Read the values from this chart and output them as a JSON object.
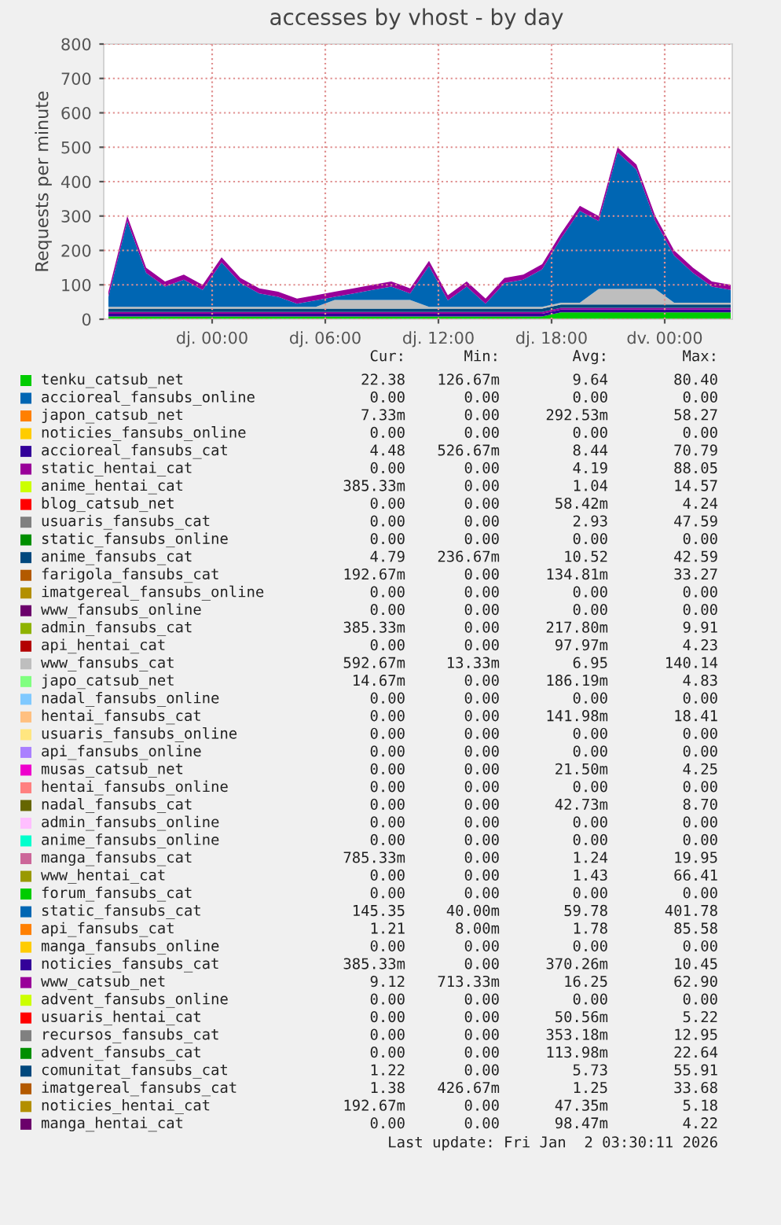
{
  "chart_data": [
    {
      "type": "area",
      "stacked": true,
      "title": "accesses by vhost - by day",
      "ylabel": "Requests per minute",
      "x": [
        "2025-12-31T18:30",
        "2025-12-31T19:30",
        "2025-12-31T20:30",
        "2025-12-31T21:30",
        "2025-12-31T22:30",
        "2025-12-31T23:30",
        "2026-01-01T00:30",
        "2026-01-01T01:30",
        "2026-01-01T02:30",
        "2026-01-01T03:30",
        "2026-01-01T04:30",
        "2026-01-01T05:30",
        "2026-01-01T06:30",
        "2026-01-01T07:30",
        "2026-01-01T08:30",
        "2026-01-01T09:30",
        "2026-01-01T10:30",
        "2026-01-01T11:30",
        "2026-01-01T12:30",
        "2026-01-01T13:30",
        "2026-01-01T14:30",
        "2026-01-01T15:30",
        "2026-01-01T16:30",
        "2026-01-01T17:30",
        "2026-01-01T18:30",
        "2026-01-01T19:30",
        "2026-01-01T20:30",
        "2026-01-01T21:30",
        "2026-01-01T22:30",
        "2026-01-01T23:30",
        "2026-01-02T00:30",
        "2026-01-02T01:30",
        "2026-01-02T02:30",
        "2026-01-02T03:30"
      ],
      "xlim": [
        "2025-12-31T18:15",
        "2026-01-02T03:35"
      ],
      "xticks": [
        {
          "value": "2026-01-01T00:00",
          "label": "dj. 00:00"
        },
        {
          "value": "2026-01-01T06:00",
          "label": "dj. 06:00"
        },
        {
          "value": "2026-01-01T12:00",
          "label": "dj. 12:00"
        },
        {
          "value": "2026-01-01T18:00",
          "label": "dj. 18:00"
        },
        {
          "value": "2026-01-02T00:00",
          "label": "dv. 00:00"
        }
      ],
      "ylim": [
        0,
        800
      ],
      "yticks": [
        0,
        100,
        200,
        300,
        400,
        500,
        600,
        700,
        800
      ],
      "grid": true,
      "legend": "bottom",
      "series": [
        {
          "name": "tenku_catsub_net",
          "color": "#00cc00",
          "values": [
            8,
            8,
            8,
            8,
            8,
            8,
            8,
            8,
            8,
            8,
            8,
            8,
            8,
            8,
            8,
            8,
            8,
            8,
            8,
            8,
            8,
            8,
            8,
            8,
            20,
            20,
            20,
            20,
            20,
            20,
            20,
            20,
            20,
            20
          ]
        },
        {
          "name": "accioreal_fansubs_online",
          "color": "#0066b3",
          "values": [
            null,
            null,
            null,
            null,
            null,
            null,
            null,
            null,
            null,
            null,
            null,
            null,
            null,
            null,
            null,
            null,
            null,
            null,
            null,
            null,
            null,
            null,
            null,
            null,
            null,
            null,
            null,
            null,
            null,
            null,
            null,
            null,
            null,
            null
          ]
        },
        {
          "name": "japon_catsub_net",
          "color": "#ff8000",
          "values": [
            null,
            null,
            null,
            null,
            null,
            null,
            null,
            null,
            null,
            null,
            null,
            null,
            null,
            null,
            null,
            null,
            null,
            null,
            null,
            null,
            null,
            null,
            null,
            null,
            null,
            null,
            null,
            null,
            null,
            null,
            null,
            null,
            null,
            null
          ]
        },
        {
          "name": "noticies_fansubs_online",
          "color": "#ffcc00",
          "values": [
            null,
            null,
            null,
            null,
            null,
            null,
            null,
            null,
            null,
            null,
            null,
            null,
            null,
            null,
            null,
            null,
            null,
            null,
            null,
            null,
            null,
            null,
            null,
            null,
            null,
            null,
            null,
            null,
            null,
            null,
            null,
            null,
            null,
            null
          ]
        },
        {
          "name": "accioreal_fansubs_cat",
          "color": "#330099",
          "values": [
            8,
            8,
            8,
            8,
            8,
            8,
            8,
            8,
            8,
            8,
            8,
            8,
            8,
            8,
            8,
            8,
            8,
            8,
            8,
            8,
            8,
            8,
            8,
            8,
            8,
            8,
            8,
            8,
            8,
            8,
            8,
            8,
            8,
            8
          ]
        },
        {
          "name": "static_hentai_cat",
          "color": "#990099",
          "values": [
            5,
            5,
            5,
            5,
            5,
            5,
            5,
            5,
            5,
            5,
            5,
            5,
            5,
            5,
            5,
            5,
            5,
            5,
            5,
            5,
            5,
            5,
            5,
            5,
            5,
            5,
            5,
            5,
            5,
            5,
            5,
            5,
            5,
            5
          ]
        },
        {
          "name": "anime_hentai_cat",
          "color": "#ccff00",
          "values": [
            null,
            null,
            null,
            null,
            null,
            null,
            null,
            null,
            null,
            null,
            null,
            null,
            null,
            null,
            null,
            null,
            null,
            null,
            null,
            null,
            null,
            null,
            null,
            null,
            null,
            null,
            null,
            null,
            null,
            null,
            null,
            null,
            null,
            null
          ]
        },
        {
          "name": "blog_catsub_net",
          "color": "#ff0000",
          "values": [
            null,
            null,
            null,
            null,
            null,
            null,
            null,
            null,
            null,
            null,
            null,
            null,
            null,
            null,
            null,
            null,
            null,
            null,
            null,
            null,
            null,
            null,
            null,
            null,
            null,
            null,
            null,
            null,
            null,
            null,
            null,
            null,
            null,
            null
          ]
        },
        {
          "name": "usuaris_fansubs_cat",
          "color": "#808080",
          "values": [
            null,
            null,
            null,
            null,
            null,
            null,
            null,
            null,
            null,
            null,
            null,
            null,
            null,
            null,
            null,
            null,
            null,
            null,
            null,
            null,
            null,
            null,
            null,
            null,
            null,
            null,
            null,
            null,
            null,
            null,
            null,
            null,
            null,
            null
          ]
        },
        {
          "name": "static_fansubs_online",
          "color": "#008f00",
          "values": [
            null,
            null,
            null,
            null,
            null,
            null,
            null,
            null,
            null,
            null,
            null,
            null,
            null,
            null,
            null,
            null,
            null,
            null,
            null,
            null,
            null,
            null,
            null,
            null,
            null,
            null,
            null,
            null,
            null,
            null,
            null,
            null,
            null,
            null
          ]
        },
        {
          "name": "anime_fansubs_cat",
          "color": "#00487d",
          "values": [
            10,
            10,
            10,
            10,
            10,
            10,
            10,
            10,
            10,
            10,
            10,
            10,
            10,
            10,
            10,
            10,
            10,
            10,
            10,
            10,
            10,
            10,
            10,
            10,
            10,
            10,
            10,
            10,
            10,
            10,
            10,
            10,
            10,
            10
          ]
        },
        {
          "name": "farigola_fansubs_cat",
          "color": "#b35a00",
          "values": [
            null,
            null,
            null,
            null,
            null,
            null,
            null,
            null,
            null,
            null,
            null,
            null,
            null,
            null,
            null,
            null,
            null,
            null,
            null,
            null,
            null,
            null,
            null,
            null,
            null,
            null,
            null,
            null,
            null,
            null,
            null,
            null,
            null,
            null
          ]
        },
        {
          "name": "imatgereal_fansubs_online",
          "color": "#b38f00",
          "values": [
            null,
            null,
            null,
            null,
            null,
            null,
            null,
            null,
            null,
            null,
            null,
            null,
            null,
            null,
            null,
            null,
            null,
            null,
            null,
            null,
            null,
            null,
            null,
            null,
            null,
            null,
            null,
            null,
            null,
            null,
            null,
            null,
            null,
            null
          ]
        },
        {
          "name": "www_fansubs_online",
          "color": "#6b006b",
          "values": [
            null,
            null,
            null,
            null,
            null,
            null,
            null,
            null,
            null,
            null,
            null,
            null,
            null,
            null,
            null,
            null,
            null,
            null,
            null,
            null,
            null,
            null,
            null,
            null,
            null,
            null,
            null,
            null,
            null,
            null,
            null,
            null,
            null,
            null
          ]
        },
        {
          "name": "admin_fansubs_cat",
          "color": "#8fb300",
          "values": [
            null,
            null,
            null,
            null,
            null,
            null,
            null,
            null,
            null,
            null,
            null,
            null,
            null,
            null,
            null,
            null,
            null,
            null,
            null,
            null,
            null,
            null,
            null,
            null,
            null,
            null,
            null,
            null,
            null,
            null,
            null,
            null,
            null,
            null
          ]
        },
        {
          "name": "api_hentai_cat",
          "color": "#b30000",
          "values": [
            null,
            null,
            null,
            null,
            null,
            null,
            null,
            null,
            null,
            null,
            null,
            null,
            null,
            null,
            null,
            null,
            null,
            null,
            null,
            null,
            null,
            null,
            null,
            null,
            null,
            null,
            null,
            null,
            null,
            null,
            null,
            null,
            null,
            null
          ]
        },
        {
          "name": "www_fansubs_cat",
          "color": "#bebebe",
          "values": [
            5,
            5,
            5,
            5,
            5,
            5,
            5,
            5,
            5,
            5,
            5,
            5,
            25,
            25,
            25,
            25,
            25,
            5,
            5,
            5,
            5,
            5,
            5,
            5,
            5,
            5,
            45,
            45,
            45,
            45,
            5,
            5,
            5,
            5
          ]
        },
        {
          "name": "japo_catsub_net",
          "color": "#80ff80",
          "values": [
            null,
            null,
            null,
            null,
            null,
            null,
            null,
            null,
            null,
            null,
            null,
            null,
            null,
            null,
            null,
            null,
            null,
            null,
            null,
            null,
            null,
            null,
            null,
            null,
            null,
            null,
            null,
            null,
            null,
            null,
            null,
            null,
            null,
            null
          ]
        },
        {
          "name": "nadal_fansubs_online",
          "color": "#80c9ff",
          "values": [
            null,
            null,
            null,
            null,
            null,
            null,
            null,
            null,
            null,
            null,
            null,
            null,
            null,
            null,
            null,
            null,
            null,
            null,
            null,
            null,
            null,
            null,
            null,
            null,
            null,
            null,
            null,
            null,
            null,
            null,
            null,
            null,
            null,
            null
          ]
        },
        {
          "name": "hentai_fansubs_cat",
          "color": "#ffc080",
          "values": [
            null,
            null,
            null,
            null,
            null,
            null,
            null,
            null,
            null,
            null,
            null,
            null,
            null,
            null,
            null,
            null,
            null,
            null,
            null,
            null,
            null,
            null,
            null,
            null,
            null,
            null,
            null,
            null,
            null,
            null,
            null,
            null,
            null,
            null
          ]
        },
        {
          "name": "usuaris_fansubs_online",
          "color": "#ffe680",
          "values": [
            null,
            null,
            null,
            null,
            null,
            null,
            null,
            null,
            null,
            null,
            null,
            null,
            null,
            null,
            null,
            null,
            null,
            null,
            null,
            null,
            null,
            null,
            null,
            null,
            null,
            null,
            null,
            null,
            null,
            null,
            null,
            null,
            null,
            null
          ]
        },
        {
          "name": "api_fansubs_online",
          "color": "#aa80ff",
          "values": [
            null,
            null,
            null,
            null,
            null,
            null,
            null,
            null,
            null,
            null,
            null,
            null,
            null,
            null,
            null,
            null,
            null,
            null,
            null,
            null,
            null,
            null,
            null,
            null,
            null,
            null,
            null,
            null,
            null,
            null,
            null,
            null,
            null,
            null
          ]
        },
        {
          "name": "musas_catsub_net",
          "color": "#ee00cc",
          "values": [
            null,
            null,
            null,
            null,
            null,
            null,
            null,
            null,
            null,
            null,
            null,
            null,
            null,
            null,
            null,
            null,
            null,
            null,
            null,
            null,
            null,
            null,
            null,
            null,
            null,
            null,
            null,
            null,
            null,
            null,
            null,
            null,
            null,
            null
          ]
        },
        {
          "name": "hentai_fansubs_online",
          "color": "#ff8080",
          "values": [
            null,
            null,
            null,
            null,
            null,
            null,
            null,
            null,
            null,
            null,
            null,
            null,
            null,
            null,
            null,
            null,
            null,
            null,
            null,
            null,
            null,
            null,
            null,
            null,
            null,
            null,
            null,
            null,
            null,
            null,
            null,
            null,
            null,
            null
          ]
        },
        {
          "name": "nadal_fansubs_cat",
          "color": "#666600",
          "values": [
            null,
            null,
            null,
            null,
            null,
            null,
            null,
            null,
            null,
            null,
            null,
            null,
            null,
            null,
            null,
            null,
            null,
            null,
            null,
            null,
            null,
            null,
            null,
            null,
            null,
            null,
            null,
            null,
            null,
            null,
            null,
            null,
            null,
            null
          ]
        },
        {
          "name": "admin_fansubs_online",
          "color": "#ffbfff",
          "values": [
            null,
            null,
            null,
            null,
            null,
            null,
            null,
            null,
            null,
            null,
            null,
            null,
            null,
            null,
            null,
            null,
            null,
            null,
            null,
            null,
            null,
            null,
            null,
            null,
            null,
            null,
            null,
            null,
            null,
            null,
            null,
            null,
            null,
            null
          ]
        },
        {
          "name": "anime_fansubs_online",
          "color": "#00ffcc",
          "values": [
            null,
            null,
            null,
            null,
            null,
            null,
            null,
            null,
            null,
            null,
            null,
            null,
            null,
            null,
            null,
            null,
            null,
            null,
            null,
            null,
            null,
            null,
            null,
            null,
            null,
            null,
            null,
            null,
            null,
            null,
            null,
            null,
            null,
            null
          ]
        },
        {
          "name": "manga_fansubs_cat",
          "color": "#cc6699",
          "values": [
            null,
            null,
            null,
            null,
            null,
            null,
            null,
            null,
            null,
            null,
            null,
            null,
            null,
            null,
            null,
            null,
            null,
            null,
            null,
            null,
            null,
            null,
            null,
            null,
            null,
            null,
            null,
            null,
            null,
            null,
            null,
            null,
            null,
            null
          ]
        },
        {
          "name": "www_hentai_cat",
          "color": "#999900",
          "values": [
            null,
            null,
            null,
            null,
            null,
            null,
            null,
            null,
            null,
            null,
            null,
            null,
            null,
            null,
            null,
            null,
            null,
            null,
            null,
            null,
            null,
            null,
            null,
            null,
            null,
            null,
            null,
            null,
            null,
            null,
            null,
            null,
            null,
            null
          ]
        },
        {
          "name": "forum_fansubs_cat",
          "color": "#00cc00",
          "values": [
            null,
            null,
            null,
            null,
            null,
            null,
            null,
            null,
            null,
            null,
            null,
            null,
            null,
            null,
            null,
            null,
            null,
            null,
            null,
            null,
            null,
            null,
            null,
            null,
            null,
            null,
            null,
            null,
            null,
            null,
            null,
            null,
            null,
            null
          ]
        },
        {
          "name": "static_fansubs_cat",
          "color": "#0066b3",
          "values": [
            29,
            249,
            99,
            59,
            79,
            49,
            129,
            69,
            39,
            29,
            9,
            19,
            9,
            19,
            29,
            39,
            19,
            119,
            19,
            59,
            9,
            69,
            79,
            109,
            187,
            267,
            197,
            397,
            347,
            197,
            137,
            87,
            47,
            37
          ]
        },
        {
          "name": "api_fansubs_cat",
          "color": "#ff8000",
          "values": [
            null,
            null,
            null,
            null,
            null,
            null,
            null,
            null,
            null,
            null,
            null,
            null,
            null,
            null,
            null,
            null,
            null,
            null,
            null,
            null,
            null,
            null,
            null,
            null,
            null,
            null,
            null,
            null,
            null,
            null,
            null,
            null,
            null,
            null
          ]
        },
        {
          "name": "manga_fansubs_online",
          "color": "#ffcc00",
          "values": [
            null,
            null,
            null,
            null,
            null,
            null,
            null,
            null,
            null,
            null,
            null,
            null,
            null,
            null,
            null,
            null,
            null,
            null,
            null,
            null,
            null,
            null,
            null,
            null,
            null,
            null,
            null,
            null,
            null,
            null,
            null,
            null,
            null,
            null
          ]
        },
        {
          "name": "noticies_fansubs_cat",
          "color": "#330099",
          "values": [
            null,
            null,
            null,
            null,
            null,
            null,
            null,
            null,
            null,
            null,
            null,
            null,
            null,
            null,
            null,
            null,
            null,
            null,
            null,
            null,
            null,
            null,
            null,
            null,
            null,
            null,
            null,
            null,
            null,
            null,
            null,
            null,
            null,
            null
          ]
        },
        {
          "name": "www_catsub_net",
          "color": "#990099",
          "values": [
            15,
            15,
            15,
            15,
            15,
            15,
            15,
            15,
            15,
            15,
            15,
            15,
            15,
            15,
            15,
            15,
            15,
            15,
            15,
            15,
            15,
            15,
            15,
            15,
            15,
            15,
            15,
            15,
            15,
            15,
            15,
            15,
            15,
            15
          ]
        },
        {
          "name": "advent_fansubs_online",
          "color": "#ccff00",
          "values": [
            null,
            null,
            null,
            null,
            null,
            null,
            null,
            null,
            null,
            null,
            null,
            null,
            null,
            null,
            null,
            null,
            null,
            null,
            null,
            null,
            null,
            null,
            null,
            null,
            null,
            null,
            null,
            null,
            null,
            null,
            null,
            null,
            null,
            null
          ]
        },
        {
          "name": "usuaris_hentai_cat",
          "color": "#ff0000",
          "values": [
            null,
            null,
            null,
            null,
            null,
            null,
            null,
            null,
            null,
            null,
            null,
            null,
            null,
            null,
            null,
            null,
            null,
            null,
            null,
            null,
            null,
            null,
            null,
            null,
            null,
            null,
            null,
            null,
            null,
            null,
            null,
            null,
            null,
            null
          ]
        },
        {
          "name": "recursos_fansubs_cat",
          "color": "#808080",
          "values": [
            null,
            null,
            null,
            null,
            null,
            null,
            null,
            null,
            null,
            null,
            null,
            null,
            null,
            null,
            null,
            null,
            null,
            null,
            null,
            null,
            null,
            null,
            null,
            null,
            null,
            null,
            null,
            null,
            null,
            null,
            null,
            null,
            null,
            null
          ]
        },
        {
          "name": "advent_fansubs_cat",
          "color": "#008f00",
          "values": [
            null,
            null,
            null,
            null,
            null,
            null,
            null,
            null,
            null,
            null,
            null,
            null,
            null,
            null,
            null,
            null,
            null,
            null,
            null,
            null,
            null,
            null,
            null,
            null,
            null,
            null,
            null,
            null,
            null,
            null,
            null,
            null,
            null,
            null
          ]
        },
        {
          "name": "comunitat_fansubs_cat",
          "color": "#00487d",
          "values": [
            null,
            null,
            null,
            null,
            null,
            null,
            null,
            null,
            null,
            null,
            null,
            null,
            null,
            null,
            null,
            null,
            null,
            null,
            null,
            null,
            null,
            null,
            null,
            null,
            null,
            null,
            null,
            null,
            null,
            null,
            null,
            null,
            null,
            null
          ]
        },
        {
          "name": "imatgereal_fansubs_cat",
          "color": "#b35a00",
          "values": [
            null,
            null,
            null,
            null,
            null,
            null,
            null,
            null,
            null,
            null,
            null,
            null,
            null,
            null,
            null,
            null,
            null,
            null,
            null,
            null,
            null,
            null,
            null,
            null,
            null,
            null,
            null,
            null,
            null,
            null,
            null,
            null,
            null,
            null
          ]
        },
        {
          "name": "noticies_hentai_cat",
          "color": "#b38f00",
          "values": [
            null,
            null,
            null,
            null,
            null,
            null,
            null,
            null,
            null,
            null,
            null,
            null,
            null,
            null,
            null,
            null,
            null,
            null,
            null,
            null,
            null,
            null,
            null,
            null,
            null,
            null,
            null,
            null,
            null,
            null,
            null,
            null,
            null,
            null
          ]
        },
        {
          "name": "manga_hentai_cat",
          "color": "#6b006b",
          "values": [
            null,
            null,
            null,
            null,
            null,
            null,
            null,
            null,
            null,
            null,
            null,
            null,
            null,
            null,
            null,
            null,
            null,
            null,
            null,
            null,
            null,
            null,
            null,
            null,
            null,
            null,
            null,
            null,
            null,
            null,
            null,
            null,
            null,
            null
          ]
        }
      ]
    },
    {
      "type": "other",
      "annotations": [
        "Cur:",
        "Min:",
        "Avg:",
        "Max:",
        "22.38",
        "126.67m",
        "9.64",
        "80.40",
        "0.00",
        "0.00",
        "0.00",
        "0.00",
        "7.33m",
        "0.00",
        "292.53m",
        "58.27",
        "0.00",
        "0.00",
        "0.00",
        "0.00",
        "4.48",
        "526.67m",
        "8.44",
        "70.79",
        "0.00",
        "0.00",
        "4.19",
        "88.05",
        "385.33m",
        "0.00",
        "1.04",
        "14.57",
        "0.00",
        "0.00",
        "58.42m",
        "4.24",
        "0.00",
        "0.00",
        "2.93",
        "47.59",
        "0.00",
        "0.00",
        "0.00",
        "0.00",
        "4.79",
        "236.67m",
        "10.52",
        "42.59",
        "192.67m",
        "0.00",
        "134.81m",
        "33.27",
        "0.00",
        "0.00",
        "0.00",
        "0.00",
        "0.00",
        "0.00",
        "0.00",
        "0.00",
        "385.33m",
        "0.00",
        "217.80m",
        "9.91",
        "0.00",
        "0.00",
        "97.97m",
        "4.23",
        "592.67m",
        "13.33m",
        "6.95",
        "140.14",
        "14.67m",
        "0.00",
        "186.19m",
        "4.83",
        "0.00",
        "0.00",
        "0.00",
        "0.00",
        "0.00",
        "0.00",
        "141.98m",
        "18.41",
        "0.00",
        "0.00",
        "0.00",
        "0.00",
        "0.00",
        "0.00",
        "0.00",
        "0.00",
        "0.00",
        "0.00",
        "21.50m",
        "4.25",
        "0.00",
        "0.00",
        "0.00",
        "0.00",
        "0.00",
        "0.00",
        "42.73m",
        "8.70",
        "0.00",
        "0.00",
        "0.00",
        "0.00",
        "0.00",
        "0.00",
        "0.00",
        "0.00",
        "785.33m",
        "0.00",
        "1.24",
        "19.95",
        "0.00",
        "0.00",
        "1.43",
        "66.41",
        "0.00",
        "0.00",
        "0.00",
        "0.00",
        "145.35",
        "40.00m",
        "59.78",
        "401.78",
        "1.21",
        "8.00m",
        "1.78",
        "85.58",
        "0.00",
        "0.00",
        "0.00",
        "0.00",
        "385.33m",
        "0.00",
        "370.26m",
        "10.45",
        "9.12",
        "713.33m",
        "16.25",
        "62.90",
        "0.00",
        "0.00",
        "0.00",
        "0.00",
        "0.00",
        "0.00",
        "50.56m",
        "5.22",
        "0.00",
        "0.00",
        "353.18m",
        "12.95",
        "0.00",
        "0.00",
        "113.98m",
        "22.64",
        "1.22",
        "0.00",
        "5.73",
        "55.91",
        "1.38",
        "426.67m",
        "1.25",
        "33.68",
        "192.67m",
        "0.00",
        "47.35m",
        "5.18",
        "0.00",
        "0.00",
        "98.47m",
        "4.22",
        "Last update: Fri Jan  2 03:30:11 2026"
      ]
    }
  ]
}
